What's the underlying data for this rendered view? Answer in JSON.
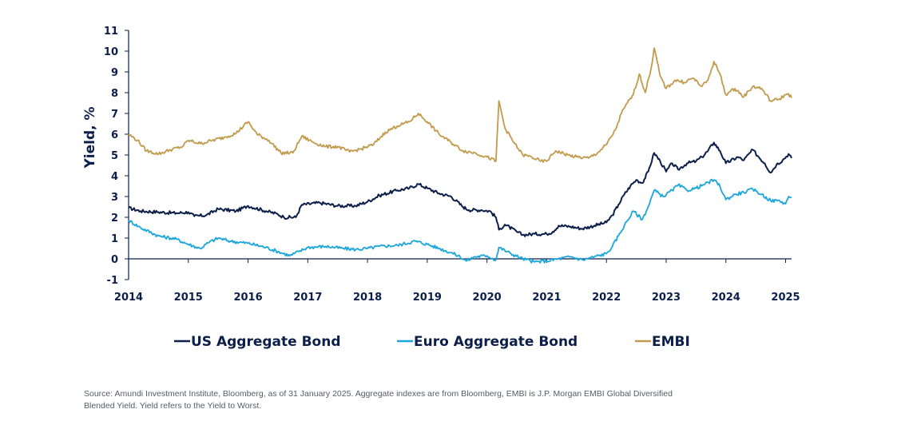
{
  "chart_data": {
    "type": "line",
    "ylabel": "Yield, %",
    "ylim": [
      -1,
      11
    ],
    "yticks": [
      "-1",
      "0",
      "1",
      "2",
      "3",
      "4",
      "5",
      "6",
      "7",
      "8",
      "9",
      "10",
      "11"
    ],
    "xlim": [
      2014.0,
      2025.1
    ],
    "xticks": [
      "2014",
      "2015",
      "2016",
      "2017",
      "2018",
      "2019",
      "2020",
      "2021",
      "2022",
      "2023",
      "2024",
      "2025"
    ],
    "grid": false,
    "legend": "bottom",
    "series": [
      {
        "name": "US Aggregate Bond",
        "color": "#0b1f4a",
        "points": [
          [
            2014.0,
            2.45
          ],
          [
            2014.2,
            2.3
          ],
          [
            2014.5,
            2.25
          ],
          [
            2014.8,
            2.2
          ],
          [
            2015.0,
            2.25
          ],
          [
            2015.1,
            2.05
          ],
          [
            2015.3,
            2.1
          ],
          [
            2015.5,
            2.4
          ],
          [
            2015.8,
            2.3
          ],
          [
            2016.0,
            2.55
          ],
          [
            2016.3,
            2.3
          ],
          [
            2016.5,
            2.15
          ],
          [
            2016.6,
            2.0
          ],
          [
            2016.8,
            2.0
          ],
          [
            2016.9,
            2.6
          ],
          [
            2017.2,
            2.7
          ],
          [
            2017.5,
            2.55
          ],
          [
            2017.8,
            2.55
          ],
          [
            2018.0,
            2.75
          ],
          [
            2018.2,
            3.05
          ],
          [
            2018.5,
            3.3
          ],
          [
            2018.7,
            3.4
          ],
          [
            2018.85,
            3.6
          ],
          [
            2019.0,
            3.4
          ],
          [
            2019.2,
            3.15
          ],
          [
            2019.4,
            3.0
          ],
          [
            2019.6,
            2.5
          ],
          [
            2019.7,
            2.35
          ],
          [
            2019.9,
            2.35
          ],
          [
            2020.05,
            2.3
          ],
          [
            2020.15,
            2.0
          ],
          [
            2020.2,
            1.4
          ],
          [
            2020.3,
            1.65
          ],
          [
            2020.5,
            1.3
          ],
          [
            2020.6,
            1.15
          ],
          [
            2020.8,
            1.2
          ],
          [
            2021.0,
            1.2
          ],
          [
            2021.1,
            1.3
          ],
          [
            2021.2,
            1.6
          ],
          [
            2021.4,
            1.55
          ],
          [
            2021.6,
            1.45
          ],
          [
            2021.8,
            1.6
          ],
          [
            2022.0,
            1.75
          ],
          [
            2022.1,
            2.1
          ],
          [
            2022.2,
            2.6
          ],
          [
            2022.3,
            3.1
          ],
          [
            2022.4,
            3.5
          ],
          [
            2022.5,
            3.8
          ],
          [
            2022.6,
            3.65
          ],
          [
            2022.7,
            4.2
          ],
          [
            2022.8,
            5.1
          ],
          [
            2022.9,
            4.7
          ],
          [
            2023.0,
            4.2
          ],
          [
            2023.1,
            4.6
          ],
          [
            2023.2,
            4.3
          ],
          [
            2023.35,
            4.6
          ],
          [
            2023.5,
            4.7
          ],
          [
            2023.6,
            4.9
          ],
          [
            2023.7,
            5.2
          ],
          [
            2023.8,
            5.6
          ],
          [
            2023.9,
            5.2
          ],
          [
            2024.0,
            4.6
          ],
          [
            2024.2,
            4.9
          ],
          [
            2024.3,
            4.75
          ],
          [
            2024.45,
            5.25
          ],
          [
            2024.55,
            4.9
          ],
          [
            2024.65,
            4.6
          ],
          [
            2024.75,
            4.15
          ],
          [
            2024.85,
            4.55
          ],
          [
            2024.95,
            4.75
          ],
          [
            2025.05,
            5.05
          ],
          [
            2025.1,
            4.85
          ]
        ]
      },
      {
        "name": "Euro Aggregate Bond",
        "color": "#1aa6dc",
        "points": [
          [
            2014.0,
            1.85
          ],
          [
            2014.2,
            1.5
          ],
          [
            2014.5,
            1.1
          ],
          [
            2014.8,
            0.95
          ],
          [
            2015.0,
            0.7
          ],
          [
            2015.2,
            0.5
          ],
          [
            2015.35,
            0.8
          ],
          [
            2015.5,
            1.0
          ],
          [
            2015.7,
            0.85
          ],
          [
            2016.0,
            0.75
          ],
          [
            2016.3,
            0.55
          ],
          [
            2016.5,
            0.35
          ],
          [
            2016.7,
            0.15
          ],
          [
            2016.85,
            0.35
          ],
          [
            2017.0,
            0.55
          ],
          [
            2017.3,
            0.6
          ],
          [
            2017.6,
            0.5
          ],
          [
            2017.8,
            0.45
          ],
          [
            2018.0,
            0.5
          ],
          [
            2018.2,
            0.6
          ],
          [
            2018.5,
            0.65
          ],
          [
            2018.8,
            0.85
          ],
          [
            2019.0,
            0.7
          ],
          [
            2019.2,
            0.5
          ],
          [
            2019.4,
            0.3
          ],
          [
            2019.55,
            0.1
          ],
          [
            2019.65,
            -0.1
          ],
          [
            2019.8,
            0.1
          ],
          [
            2020.0,
            0.15
          ],
          [
            2020.15,
            -0.05
          ],
          [
            2020.2,
            0.55
          ],
          [
            2020.4,
            0.25
          ],
          [
            2020.6,
            0.0
          ],
          [
            2020.8,
            -0.15
          ],
          [
            2021.0,
            -0.1
          ],
          [
            2021.2,
            0.0
          ],
          [
            2021.4,
            0.1
          ],
          [
            2021.6,
            -0.05
          ],
          [
            2021.8,
            0.1
          ],
          [
            2022.0,
            0.25
          ],
          [
            2022.1,
            0.6
          ],
          [
            2022.2,
            1.1
          ],
          [
            2022.3,
            1.6
          ],
          [
            2022.45,
            2.3
          ],
          [
            2022.6,
            1.9
          ],
          [
            2022.7,
            2.5
          ],
          [
            2022.8,
            3.3
          ],
          [
            2022.95,
            3.0
          ],
          [
            2023.1,
            3.3
          ],
          [
            2023.2,
            3.55
          ],
          [
            2023.35,
            3.3
          ],
          [
            2023.5,
            3.4
          ],
          [
            2023.65,
            3.6
          ],
          [
            2023.8,
            3.8
          ],
          [
            2023.9,
            3.5
          ],
          [
            2024.0,
            2.85
          ],
          [
            2024.15,
            3.1
          ],
          [
            2024.3,
            3.2
          ],
          [
            2024.45,
            3.35
          ],
          [
            2024.6,
            3.1
          ],
          [
            2024.75,
            2.8
          ],
          [
            2024.9,
            2.8
          ],
          [
            2025.0,
            2.65
          ],
          [
            2025.05,
            3.0
          ],
          [
            2025.1,
            2.95
          ]
        ]
      },
      {
        "name": "EMBI",
        "color": "#c19a4b",
        "points": [
          [
            2014.0,
            6.0
          ],
          [
            2014.15,
            5.7
          ],
          [
            2014.3,
            5.2
          ],
          [
            2014.5,
            5.05
          ],
          [
            2014.7,
            5.25
          ],
          [
            2014.9,
            5.4
          ],
          [
            2015.0,
            5.7
          ],
          [
            2015.2,
            5.55
          ],
          [
            2015.4,
            5.7
          ],
          [
            2015.6,
            5.85
          ],
          [
            2015.8,
            6.05
          ],
          [
            2016.0,
            6.6
          ],
          [
            2016.15,
            6.0
          ],
          [
            2016.35,
            5.7
          ],
          [
            2016.55,
            5.1
          ],
          [
            2016.75,
            5.1
          ],
          [
            2016.9,
            5.9
          ],
          [
            2017.1,
            5.6
          ],
          [
            2017.3,
            5.4
          ],
          [
            2017.5,
            5.4
          ],
          [
            2017.7,
            5.15
          ],
          [
            2017.9,
            5.3
          ],
          [
            2018.1,
            5.5
          ],
          [
            2018.3,
            6.1
          ],
          [
            2018.5,
            6.4
          ],
          [
            2018.7,
            6.6
          ],
          [
            2018.85,
            7.0
          ],
          [
            2019.0,
            6.6
          ],
          [
            2019.2,
            6.0
          ],
          [
            2019.4,
            5.6
          ],
          [
            2019.6,
            5.2
          ],
          [
            2019.8,
            5.1
          ],
          [
            2020.0,
            4.9
          ],
          [
            2020.15,
            4.7
          ],
          [
            2020.2,
            7.6
          ],
          [
            2020.3,
            6.3
          ],
          [
            2020.45,
            5.6
          ],
          [
            2020.6,
            5.0
          ],
          [
            2020.75,
            4.9
          ],
          [
            2020.9,
            4.7
          ],
          [
            2021.0,
            4.7
          ],
          [
            2021.15,
            5.2
          ],
          [
            2021.35,
            5.0
          ],
          [
            2021.5,
            4.9
          ],
          [
            2021.7,
            4.85
          ],
          [
            2021.85,
            5.1
          ],
          [
            2022.0,
            5.5
          ],
          [
            2022.15,
            6.2
          ],
          [
            2022.25,
            7.0
          ],
          [
            2022.35,
            7.5
          ],
          [
            2022.45,
            7.9
          ],
          [
            2022.55,
            8.9
          ],
          [
            2022.65,
            8.0
          ],
          [
            2022.75,
            9.2
          ],
          [
            2022.8,
            10.15
          ],
          [
            2022.9,
            8.8
          ],
          [
            2023.0,
            8.2
          ],
          [
            2023.15,
            8.6
          ],
          [
            2023.3,
            8.5
          ],
          [
            2023.45,
            8.7
          ],
          [
            2023.6,
            8.3
          ],
          [
            2023.7,
            8.6
          ],
          [
            2023.8,
            9.5
          ],
          [
            2023.9,
            8.9
          ],
          [
            2024.0,
            7.9
          ],
          [
            2024.15,
            8.2
          ],
          [
            2024.3,
            7.8
          ],
          [
            2024.45,
            8.3
          ],
          [
            2024.6,
            8.2
          ],
          [
            2024.75,
            7.6
          ],
          [
            2024.9,
            7.7
          ],
          [
            2025.0,
            7.9
          ],
          [
            2025.05,
            7.95
          ],
          [
            2025.1,
            7.75
          ]
        ]
      }
    ]
  },
  "source": "Source: Amundi Investment Institute, Bloomberg, as of 31 January 2025. Aggregate indexes are from Bloomberg, EMBI is J.P. Morgan EMBI Global Diversified Blended Yield. Yield refers to the Yield to Worst."
}
